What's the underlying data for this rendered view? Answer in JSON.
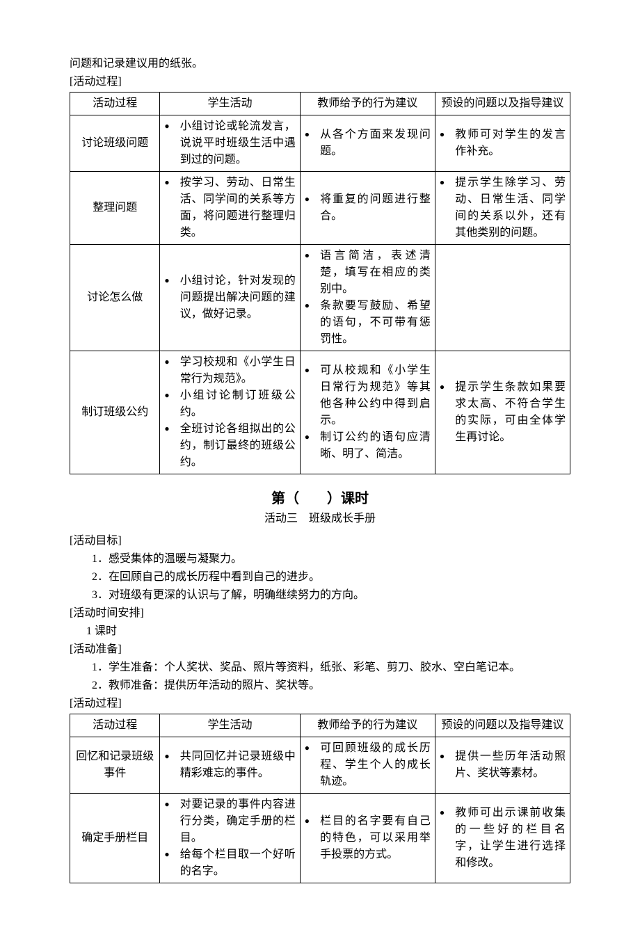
{
  "preText1": "问题和记录建议用的纸张。",
  "preText2": "[活动过程]",
  "table1": {
    "headers": [
      "活动过程",
      "学生活动",
      "教师给予的行为建议",
      "预设的问题以及指导建议"
    ],
    "rows": [
      {
        "proc": "讨论班级问题",
        "student": [
          "小组讨论或轮流发言，说说平时班级生活中遇到过的问题。"
        ],
        "teacher": [
          "从各个方面来发现问题。"
        ],
        "preset": [
          "教师可对学生的发言作补充。"
        ]
      },
      {
        "proc": "整理问题",
        "student": [
          "按学习、劳动、日常生活、同学间的关系等方面，将问题进行整理归类。"
        ],
        "teacher": [
          "将重复的问题进行整合。"
        ],
        "preset": [
          "提示学生除学习、劳动、日常生活、同学间的关系以外，还有其他类别的问题。"
        ]
      },
      {
        "proc": "讨论怎么做",
        "student": [
          "小组讨论，针对发现的问题提出解决问题的建议，做好记录。"
        ],
        "teacher": [
          "语言简洁，表述清楚，填写在相应的类别中。",
          "条款要写鼓励、希望的语句，不可带有惩罚性。"
        ],
        "preset": []
      },
      {
        "proc": "制订班级公约",
        "student": [
          "学习校规和《小学生日常行为规范》。",
          "小组讨论制订班级公约。",
          "全班讨论各组拟出的公约，制订最终的班级公约。"
        ],
        "teacher": [
          "可从校规和《小学生日常行为规范》等其他各种公约中得到启示。",
          "制订公约的语句应清晰、明了、简洁。"
        ],
        "preset": [
          "提示学生条款如果要求太高、不符合学生的实际，可由全体学生再讨论。"
        ]
      }
    ]
  },
  "lessonHeading": "第（　　）课时",
  "lessonSub": "活动三　班级成长手册",
  "sections": {
    "goalLabel": "[活动目标]",
    "goals": [
      "1．感受集体的温暖与凝聚力。",
      "2．在回顾自己的成长历程中看到自己的进步。",
      "3．对班级有更深的认识与了解，明确继续努力的方向。"
    ],
    "timeLabel": "[活动时间安排]",
    "timeText": "1 课时",
    "prepLabel": "[活动准备]",
    "preps": [
      "1．学生准备：个人奖状、奖品、照片等资料，纸张、彩笔、剪刀、胶水、空白笔记本。",
      "2．教师准备：提供历年活动的照片、奖状等。"
    ],
    "procLabel": "[活动过程]"
  },
  "table2": {
    "headers": [
      "活动过程",
      "学生活动",
      "教师给予的行为建议",
      "预设的问题以及指导建议"
    ],
    "rows": [
      {
        "proc": "回忆和记录班级事件",
        "student": [
          "共同回忆并记录班级中精彩难忘的事件。"
        ],
        "teacher": [
          "可回顾班级的成长历程、学生个人的成长轨迹。"
        ],
        "preset": [
          "提供一些历年活动照片、奖状等素材。"
        ]
      },
      {
        "proc": "确定手册栏目",
        "student": [
          "对要记录的事件内容进行分类，确定手册的栏目。",
          "给每个栏目取一个好听的名字。"
        ],
        "teacher": [
          "栏目的名字要有自己的特色，可以采用举手投票的方式。"
        ],
        "preset": [
          "教师可出示课前收集的一些好的栏目名字，让学生进行选择和修改。"
        ]
      }
    ]
  }
}
